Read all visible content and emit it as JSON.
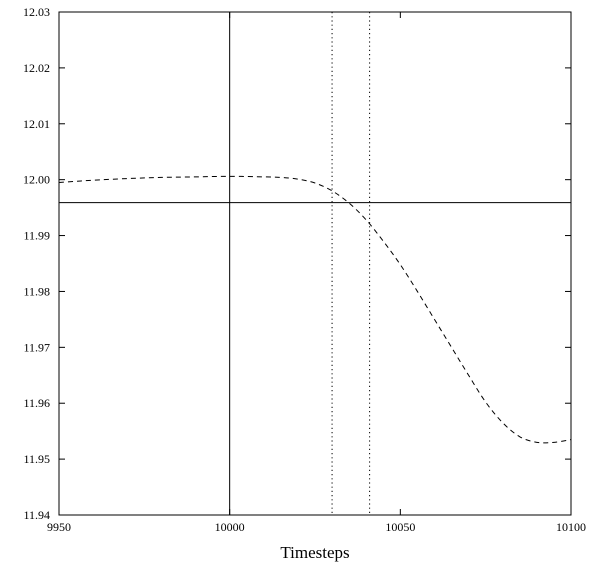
{
  "chart_data": {
    "type": "line",
    "title": "",
    "xlabel": "Timesteps",
    "ylabel": "",
    "xlim": [
      9950,
      10100
    ],
    "ylim": [
      11.94,
      12.03
    ],
    "x_ticks": [
      "9950",
      "10000",
      "10050",
      "10100"
    ],
    "y_ticks": [
      "11.94",
      "11.95",
      "11.96",
      "11.97",
      "11.98",
      "11.99",
      "12.00",
      "12.01",
      "12.02",
      "12.03"
    ],
    "grid": false,
    "legend": "none",
    "series": [
      {
        "style": "dashed",
        "color": "#000000",
        "x": [
          9950,
          9955,
          9960,
          9970,
          9980,
          9990,
          10000,
          10010,
          10015,
          10020,
          10025,
          10030,
          10035,
          10040,
          10045,
          10050,
          10055,
          10060,
          10065,
          10070,
          10075,
          10080,
          10085,
          10090,
          10095,
          10100
        ],
        "y": [
          11.9995,
          11.9997,
          11.9999,
          12.0002,
          12.0004,
          12.0005,
          12.0006,
          12.0005,
          12.0004,
          12.0001,
          11.9994,
          11.998,
          11.9958,
          11.9928,
          11.989,
          11.9848,
          11.98,
          11.975,
          11.97,
          11.965,
          11.9602,
          11.9565,
          11.954,
          11.953,
          11.953,
          11.9535
        ]
      }
    ],
    "reference_lines": {
      "horizontal_solid": 11.9959,
      "vertical_solid": 10000,
      "vertical_dotted": [
        10030,
        10041
      ]
    }
  }
}
